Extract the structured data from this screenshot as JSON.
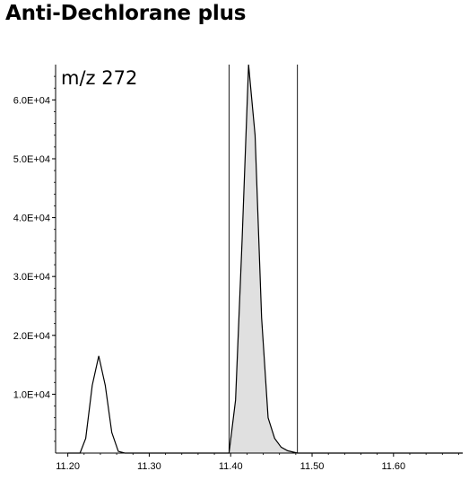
{
  "chart_data": {
    "type": "area",
    "title": "Anti-Dechlorane plus",
    "annotation": "m/z 272",
    "xlabel": "",
    "ylabel": "",
    "xlim": [
      11.185,
      11.685
    ],
    "ylim": [
      0,
      66000
    ],
    "x_ticks": [
      {
        "value": 11.2,
        "label": "11.20"
      },
      {
        "value": 11.3,
        "label": "11.30"
      },
      {
        "value": 11.4,
        "label": "11.40"
      },
      {
        "value": 11.5,
        "label": "11.50"
      },
      {
        "value": 11.6,
        "label": "11.60"
      }
    ],
    "y_ticks": [
      {
        "value": 10000,
        "label": "1.0E+04"
      },
      {
        "value": 20000,
        "label": "2.0E+04"
      },
      {
        "value": 30000,
        "label": "3.0E+04"
      },
      {
        "value": 40000,
        "label": "4.0E+04"
      },
      {
        "value": 50000,
        "label": "5.0E+04"
      },
      {
        "value": 60000,
        "label": "6.0E+04"
      }
    ],
    "integration_bounds": [
      11.398,
      11.482
    ],
    "grid": false,
    "colors": {
      "trace": "#000000",
      "fill": "#e0e0e0",
      "bounds": "#000000"
    },
    "series": [
      {
        "x": [
          11.2,
          11.215,
          11.222,
          11.23,
          11.238,
          11.246,
          11.254,
          11.262,
          11.27,
          11.3,
          11.35,
          11.398,
          11.406,
          11.414,
          11.422,
          11.43,
          11.438,
          11.446,
          11.454,
          11.462,
          11.47,
          11.482,
          11.52,
          11.6,
          11.685
        ],
        "y": [
          0,
          0,
          2500,
          11500,
          16500,
          11500,
          3500,
          300,
          0,
          0,
          0,
          0,
          9000,
          36000,
          66000,
          54000,
          23000,
          6000,
          2500,
          1000,
          400,
          0,
          0,
          0,
          0
        ]
      }
    ]
  }
}
